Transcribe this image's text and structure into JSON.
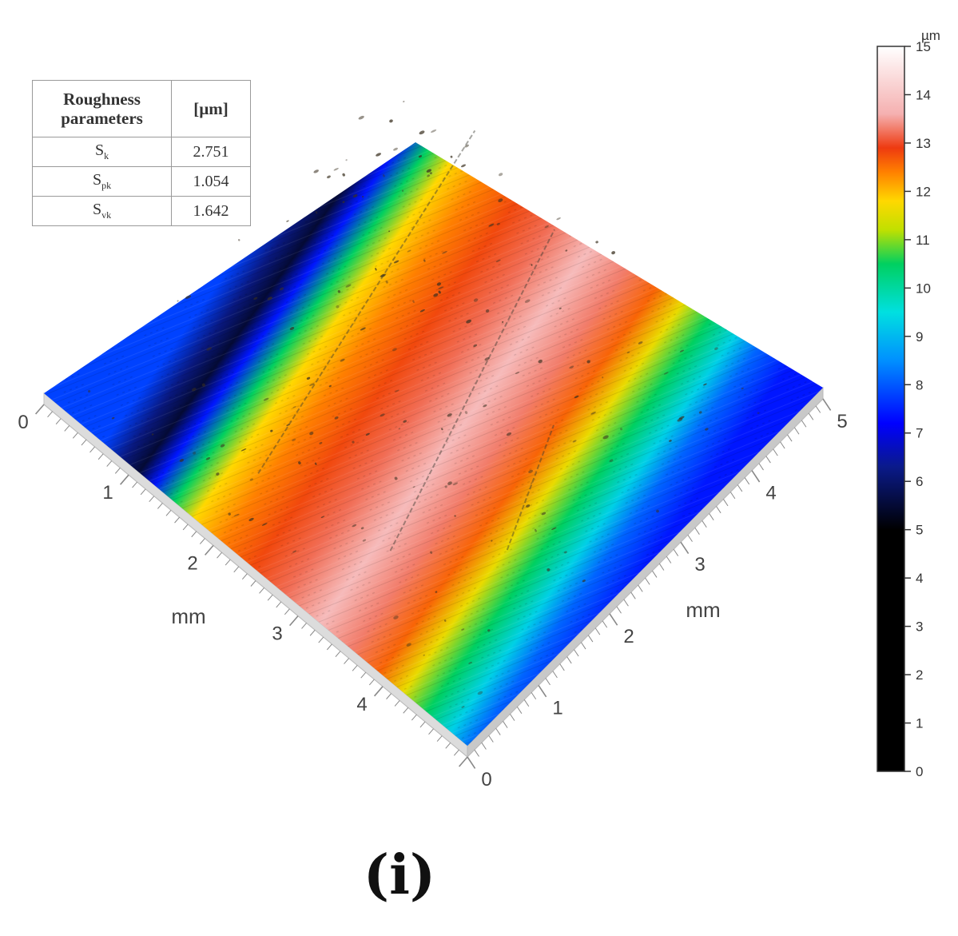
{
  "chart_data": {
    "type": "heatmap",
    "title": "",
    "x_axis": {
      "label": "mm",
      "range": [
        0,
        5
      ],
      "ticks": [
        "0",
        "1",
        "2",
        "3",
        "4",
        "5"
      ]
    },
    "y_axis": {
      "label": "mm",
      "range": [
        0,
        5
      ],
      "ticks": [
        "0",
        "1",
        "2",
        "3",
        "4"
      ]
    },
    "colorbar": {
      "unit": "µm",
      "range": [
        0,
        15
      ],
      "ticks": [
        "0",
        "1",
        "2",
        "3",
        "4",
        "5",
        "6",
        "7",
        "8",
        "9",
        "10",
        "11",
        "12",
        "13",
        "14",
        "15"
      ],
      "colors": [
        {
          "value": 0,
          "color": "#000000"
        },
        {
          "value": 5,
          "color": "#000000"
        },
        {
          "value": 6.3,
          "color": "#0a1a8a"
        },
        {
          "value": 7.2,
          "color": "#0000ff"
        },
        {
          "value": 8.5,
          "color": "#0090ff"
        },
        {
          "value": 9.5,
          "color": "#00e0e0"
        },
        {
          "value": 10.5,
          "color": "#00d060"
        },
        {
          "value": 11.2,
          "color": "#c0e000"
        },
        {
          "value": 11.8,
          "color": "#ffd800"
        },
        {
          "value": 12.4,
          "color": "#ff8000"
        },
        {
          "value": 12.9,
          "color": "#ee3a10"
        },
        {
          "value": 13.6,
          "color": "#f5b0b0"
        },
        {
          "value": 15,
          "color": "#ffffff"
        }
      ]
    },
    "surface_bands": [
      {
        "v": 0.0,
        "height_um": 7.8
      },
      {
        "v": 0.05,
        "height_um": 6.2
      },
      {
        "v": 0.09,
        "height_um": 5.5
      },
      {
        "v": 0.13,
        "height_um": 7.4
      },
      {
        "v": 0.18,
        "height_um": 10.5
      },
      {
        "v": 0.23,
        "height_um": 11.8
      },
      {
        "v": 0.3,
        "height_um": 12.4
      },
      {
        "v": 0.38,
        "height_um": 12.8
      },
      {
        "v": 0.46,
        "height_um": 13.2
      },
      {
        "v": 0.55,
        "height_um": 13.8
      },
      {
        "v": 0.63,
        "height_um": 13.3
      },
      {
        "v": 0.7,
        "height_um": 12.6
      },
      {
        "v": 0.76,
        "height_um": 11.6
      },
      {
        "v": 0.82,
        "height_um": 10.5
      },
      {
        "v": 0.88,
        "height_um": 9.3
      },
      {
        "v": 0.93,
        "height_um": 8.1
      },
      {
        "v": 1.0,
        "height_um": 7.4
      }
    ]
  },
  "roughness_table": {
    "headers": [
      "Roughness parameters",
      "[µm]"
    ],
    "rows": [
      {
        "symbol": "S",
        "sub": "k",
        "value": "2.751"
      },
      {
        "symbol": "S",
        "sub": "pk",
        "value": "1.054"
      },
      {
        "symbol": "S",
        "sub": "vk",
        "value": "1.642"
      }
    ]
  },
  "panel_label": "(i)"
}
